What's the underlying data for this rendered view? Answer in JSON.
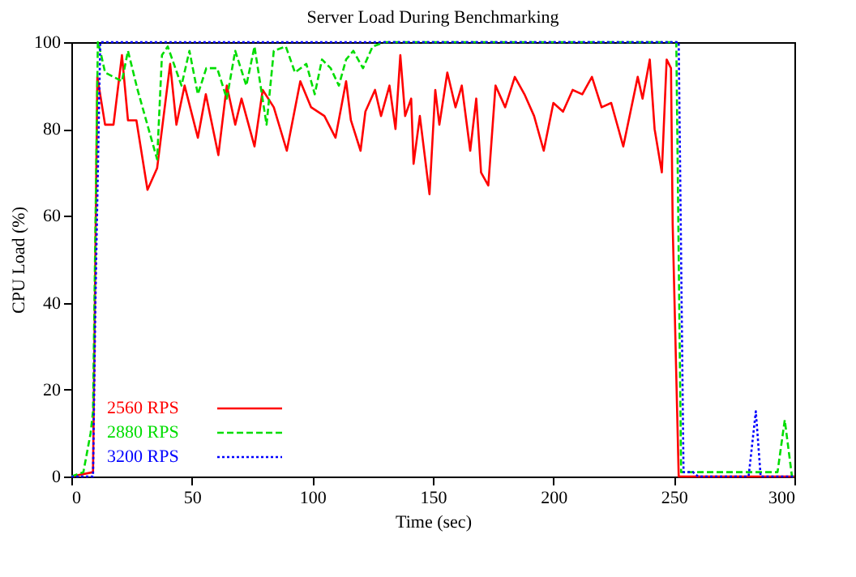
{
  "chart_data": {
    "type": "line",
    "title": "Server Load During Benchmarking",
    "xlabel": "Time (sec)",
    "ylabel": "CPU Load (%)",
    "xlim": [
      0,
      300
    ],
    "xticks": [
      0,
      50,
      100,
      150,
      200,
      250,
      300
    ],
    "ylim": [
      0,
      100
    ],
    "yticks": [
      0,
      20,
      40,
      60,
      80,
      100
    ],
    "grid": false,
    "legend": "bottom left",
    "marker": "none",
    "series": [
      {
        "name": "2560 RPS",
        "color": "#ff0000",
        "line_style": "solid",
        "x": [
          0,
          9,
          10.8,
          14,
          17.5,
          21,
          23.5,
          27,
          31.6,
          35.6,
          41,
          43.6,
          47,
          52.5,
          55.8,
          61,
          64.5,
          68,
          70.6,
          76,
          79.4,
          84,
          89.4,
          95,
          99.5,
          105,
          109.6,
          114,
          116,
          120,
          122,
          126,
          128.5,
          132,
          134.5,
          136.5,
          138.5,
          141,
          142,
          144.6,
          148.6,
          151,
          152.7,
          156,
          159.4,
          162,
          165.5,
          168,
          170,
          173,
          176,
          180,
          184,
          188,
          192,
          196,
          200,
          204,
          208,
          212,
          216,
          220,
          224,
          227,
          229,
          235,
          237,
          240,
          242,
          245,
          247,
          248.8,
          249.5,
          252,
          300
        ],
        "values": [
          0,
          1,
          92,
          81,
          81,
          97,
          82,
          82,
          66,
          71,
          95,
          81,
          90,
          78,
          88,
          74,
          90,
          81,
          87,
          76,
          89,
          85,
          75,
          91,
          85,
          83,
          78,
          91,
          82,
          75,
          84,
          89,
          83,
          90,
          80,
          97,
          83,
          87,
          72,
          83,
          65,
          89,
          81,
          93,
          85,
          90,
          75,
          87,
          70,
          67,
          90,
          85,
          92,
          88,
          83,
          75,
          86,
          84,
          89,
          88,
          92,
          85,
          86,
          80,
          76,
          92,
          87,
          96,
          80,
          70,
          96,
          94,
          58,
          0,
          0
        ]
      },
      {
        "name": "2880 RPS",
        "color": "#00dd00",
        "line_style": "dashed",
        "x": [
          0,
          5,
          8,
          9,
          11,
          12,
          14,
          21,
          23.5,
          27.5,
          35.6,
          37.6,
          40,
          45.7,
          49,
          52.5,
          56,
          60.5,
          64.5,
          68,
          72.6,
          76,
          81,
          84,
          89,
          92.8,
          97.5,
          101,
          104,
          107.6,
          111,
          114,
          117,
          121,
          125,
          130,
          251,
          253,
          260,
          293,
          296,
          299,
          300
        ],
        "values": [
          0,
          1,
          10,
          15,
          100,
          98,
          93,
          91,
          98,
          89,
          73,
          97,
          99,
          90,
          98,
          88,
          94,
          94,
          87,
          98,
          90,
          99,
          81,
          98,
          99,
          93,
          95,
          88,
          96,
          94,
          90,
          96,
          98,
          94,
          99,
          100,
          100,
          1,
          1,
          1,
          13,
          0,
          0
        ]
      },
      {
        "name": "3200 RPS",
        "color": "#0000ff",
        "line_style": "dotted",
        "x": [
          0,
          9,
          10,
          12,
          252,
          254,
          258,
          260,
          281,
          284,
          286,
          300
        ],
        "values": [
          0,
          0,
          40,
          100,
          100,
          1,
          1,
          0,
          0,
          15,
          0,
          0
        ]
      }
    ]
  }
}
